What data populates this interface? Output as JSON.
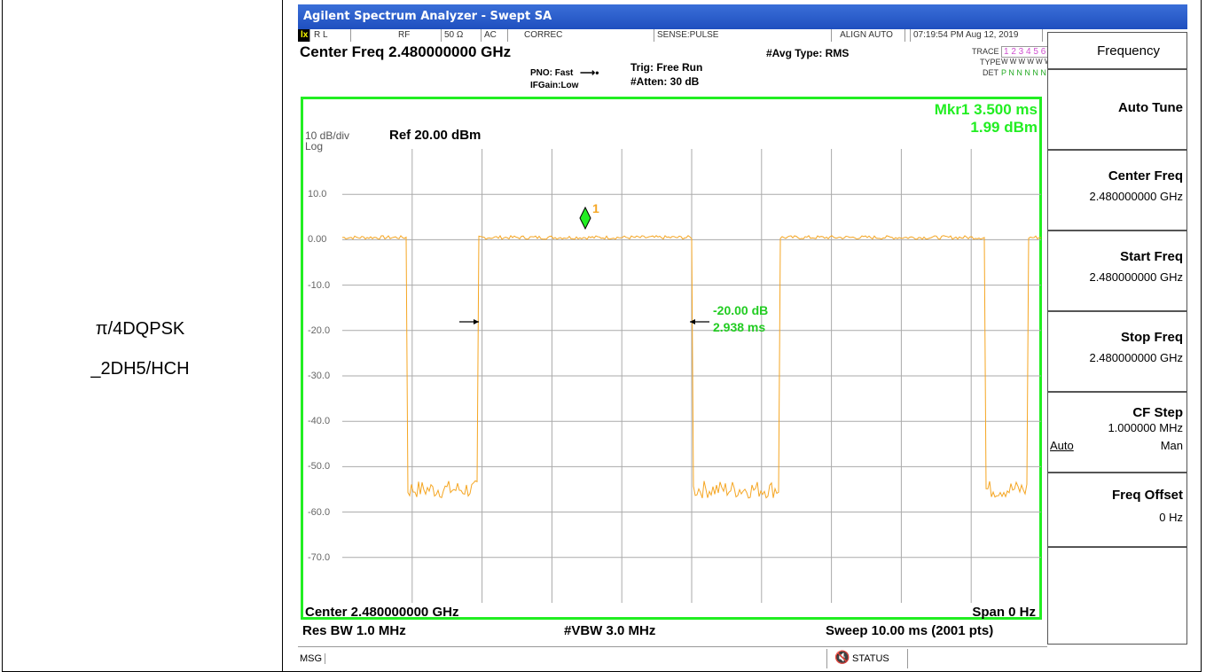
{
  "row_label": {
    "line1": "π/4DQPSK",
    "line2": "_2DH5/HCH"
  },
  "window": {
    "title": "Agilent Spectrum Analyzer - Swept SA"
  },
  "status": {
    "rl": "R L",
    "rf": "RF",
    "imp": "50 Ω",
    "ac": "AC",
    "correc": "CORREC",
    "sense": "SENSE:PULSE",
    "align": "ALIGN AUTO",
    "datetime": "07:19:54 PM Aug 12, 2019"
  },
  "header": {
    "center_freq": "Center Freq 2.480000000 GHz",
    "pno": "PNO: Fast",
    "ifgain": "IFGain:Low",
    "trig": "Trig: Free Run",
    "atten": "#Atten: 30 dB",
    "avg_type": "#Avg Type: RMS",
    "trace_label": "TRACE",
    "trace_nums": "1 2 3 4 5 6",
    "type_label": "TYPE",
    "type_vals": "W W W W W W",
    "det_label": "DET",
    "det_vals": "P N N N N N"
  },
  "plot": {
    "scale": "10 dB/div",
    "log": "Log",
    "ref": "Ref 20.00 dBm",
    "marker_freq": "Mkr1 3.500 ms",
    "marker_val": "1.99 dBm",
    "marker_num": "1",
    "delta_db": "-20.00 dB",
    "delta_time": "2.938 ms",
    "y_ticks": [
      "10.0",
      "0.00",
      "-10.0",
      "-20.0",
      "-30.0",
      "-40.0",
      "-50.0",
      "-60.0",
      "-70.0"
    ],
    "center": "Center 2.480000000 GHz",
    "span": "Span 0 Hz",
    "res_bw": "Res BW 1.0 MHz",
    "vbw": "#VBW 3.0 MHz",
    "sweep": "Sweep  10.00 ms (2001 pts)"
  },
  "softkeys": {
    "menu_title": "Frequency",
    "auto_tune": "Auto Tune",
    "center_freq": "Center Freq",
    "center_freq_val": "2.480000000 GHz",
    "start_freq": "Start Freq",
    "start_freq_val": "2.480000000 GHz",
    "stop_freq": "Stop Freq",
    "stop_freq_val": "2.480000000 GHz",
    "cf_step": "CF Step",
    "cf_step_val": "1.000000 MHz",
    "auto": "Auto",
    "man": "Man",
    "freq_offset": "Freq Offset",
    "freq_offset_val": "0 Hz"
  },
  "bottom": {
    "msg": "MSG",
    "status": "STATUS"
  },
  "colors": {
    "trace": "#f5a623",
    "frame": "#22ee22",
    "marker": "#22cc22",
    "title_bg": "#2a5ccc"
  }
}
